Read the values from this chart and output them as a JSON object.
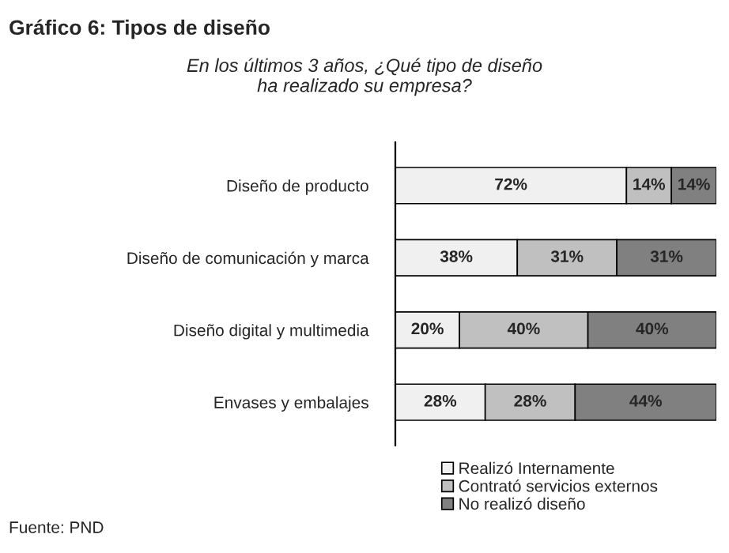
{
  "chart_data": {
    "type": "bar",
    "orientation": "horizontal",
    "stacked": true,
    "title": "Gráfico 6: Tipos de diseño",
    "subtitle": "En los últimos 3 años, ¿Qué tipo de diseño\nha realizado su empresa?",
    "categories": [
      "Diseño de producto",
      "Diseño de comunicación y marca",
      "Diseño digital y multimedia",
      "Envases y embalajes"
    ],
    "series": [
      {
        "name": "Realizó Internamente",
        "color": "#f0f0f0",
        "values": [
          72,
          38,
          20,
          28
        ],
        "value_labels": [
          "72%",
          "38%",
          "20%",
          "28%"
        ]
      },
      {
        "name": "Contrató servicios externos",
        "color": "#c0c0c0",
        "values": [
          14,
          31,
          40,
          28
        ],
        "value_labels": [
          "14%",
          "31%",
          "40%",
          "28%"
        ]
      },
      {
        "name": "No realizó diseño",
        "color": "#808080",
        "values": [
          14,
          31,
          40,
          44
        ],
        "value_labels": [
          "14%",
          "31%",
          "40%",
          "44%"
        ]
      }
    ],
    "legend": "bottom",
    "annotations": [
      "Fuente: PND"
    ]
  }
}
